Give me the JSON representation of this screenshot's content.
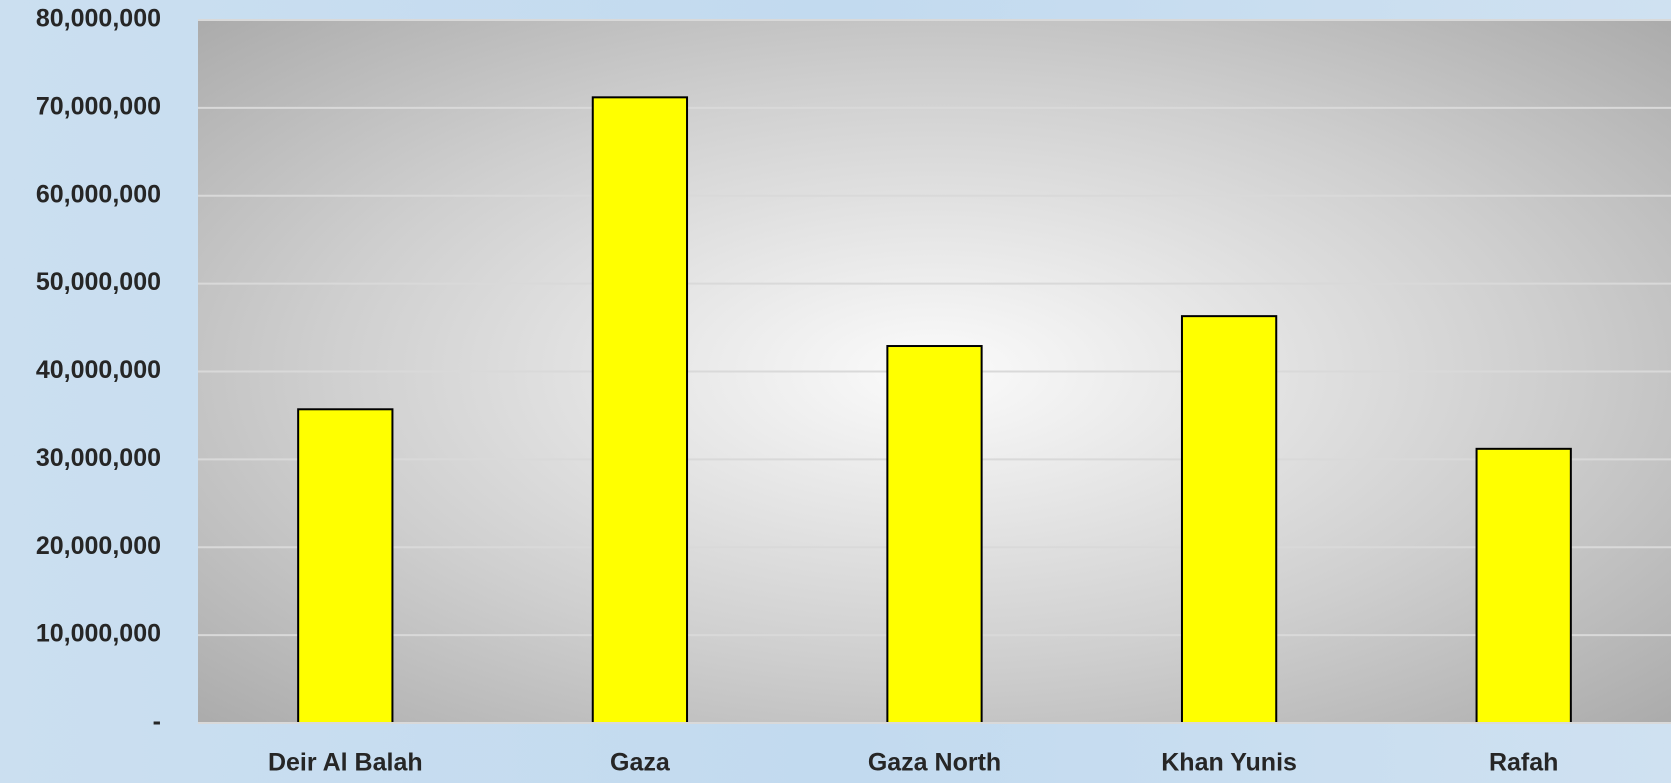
{
  "chart_data": {
    "type": "bar",
    "title": "",
    "xlabel": "",
    "ylabel": "",
    "categories": [
      "Deir Al Balah",
      "Gaza",
      "Gaza North",
      "Khan Yunis",
      "Rafah"
    ],
    "values": [
      35700000,
      71200000,
      42900000,
      46300000,
      31200000
    ],
    "ylim": [
      0,
      80000000
    ],
    "yticks": [
      0,
      10000000,
      20000000,
      30000000,
      40000000,
      50000000,
      60000000,
      70000000,
      80000000
    ],
    "ytick_labels": [
      "-",
      "10,000,000",
      "20,000,000",
      "30,000,000",
      "40,000,000",
      "50,000,000",
      "60,000,000",
      "70,000,000",
      "80,000,000"
    ],
    "grid": true,
    "legend": "none",
    "colors": {
      "bar_fill": "#ffff00",
      "bar_stroke": "#000000",
      "gridline": "#d9d9d9"
    }
  }
}
